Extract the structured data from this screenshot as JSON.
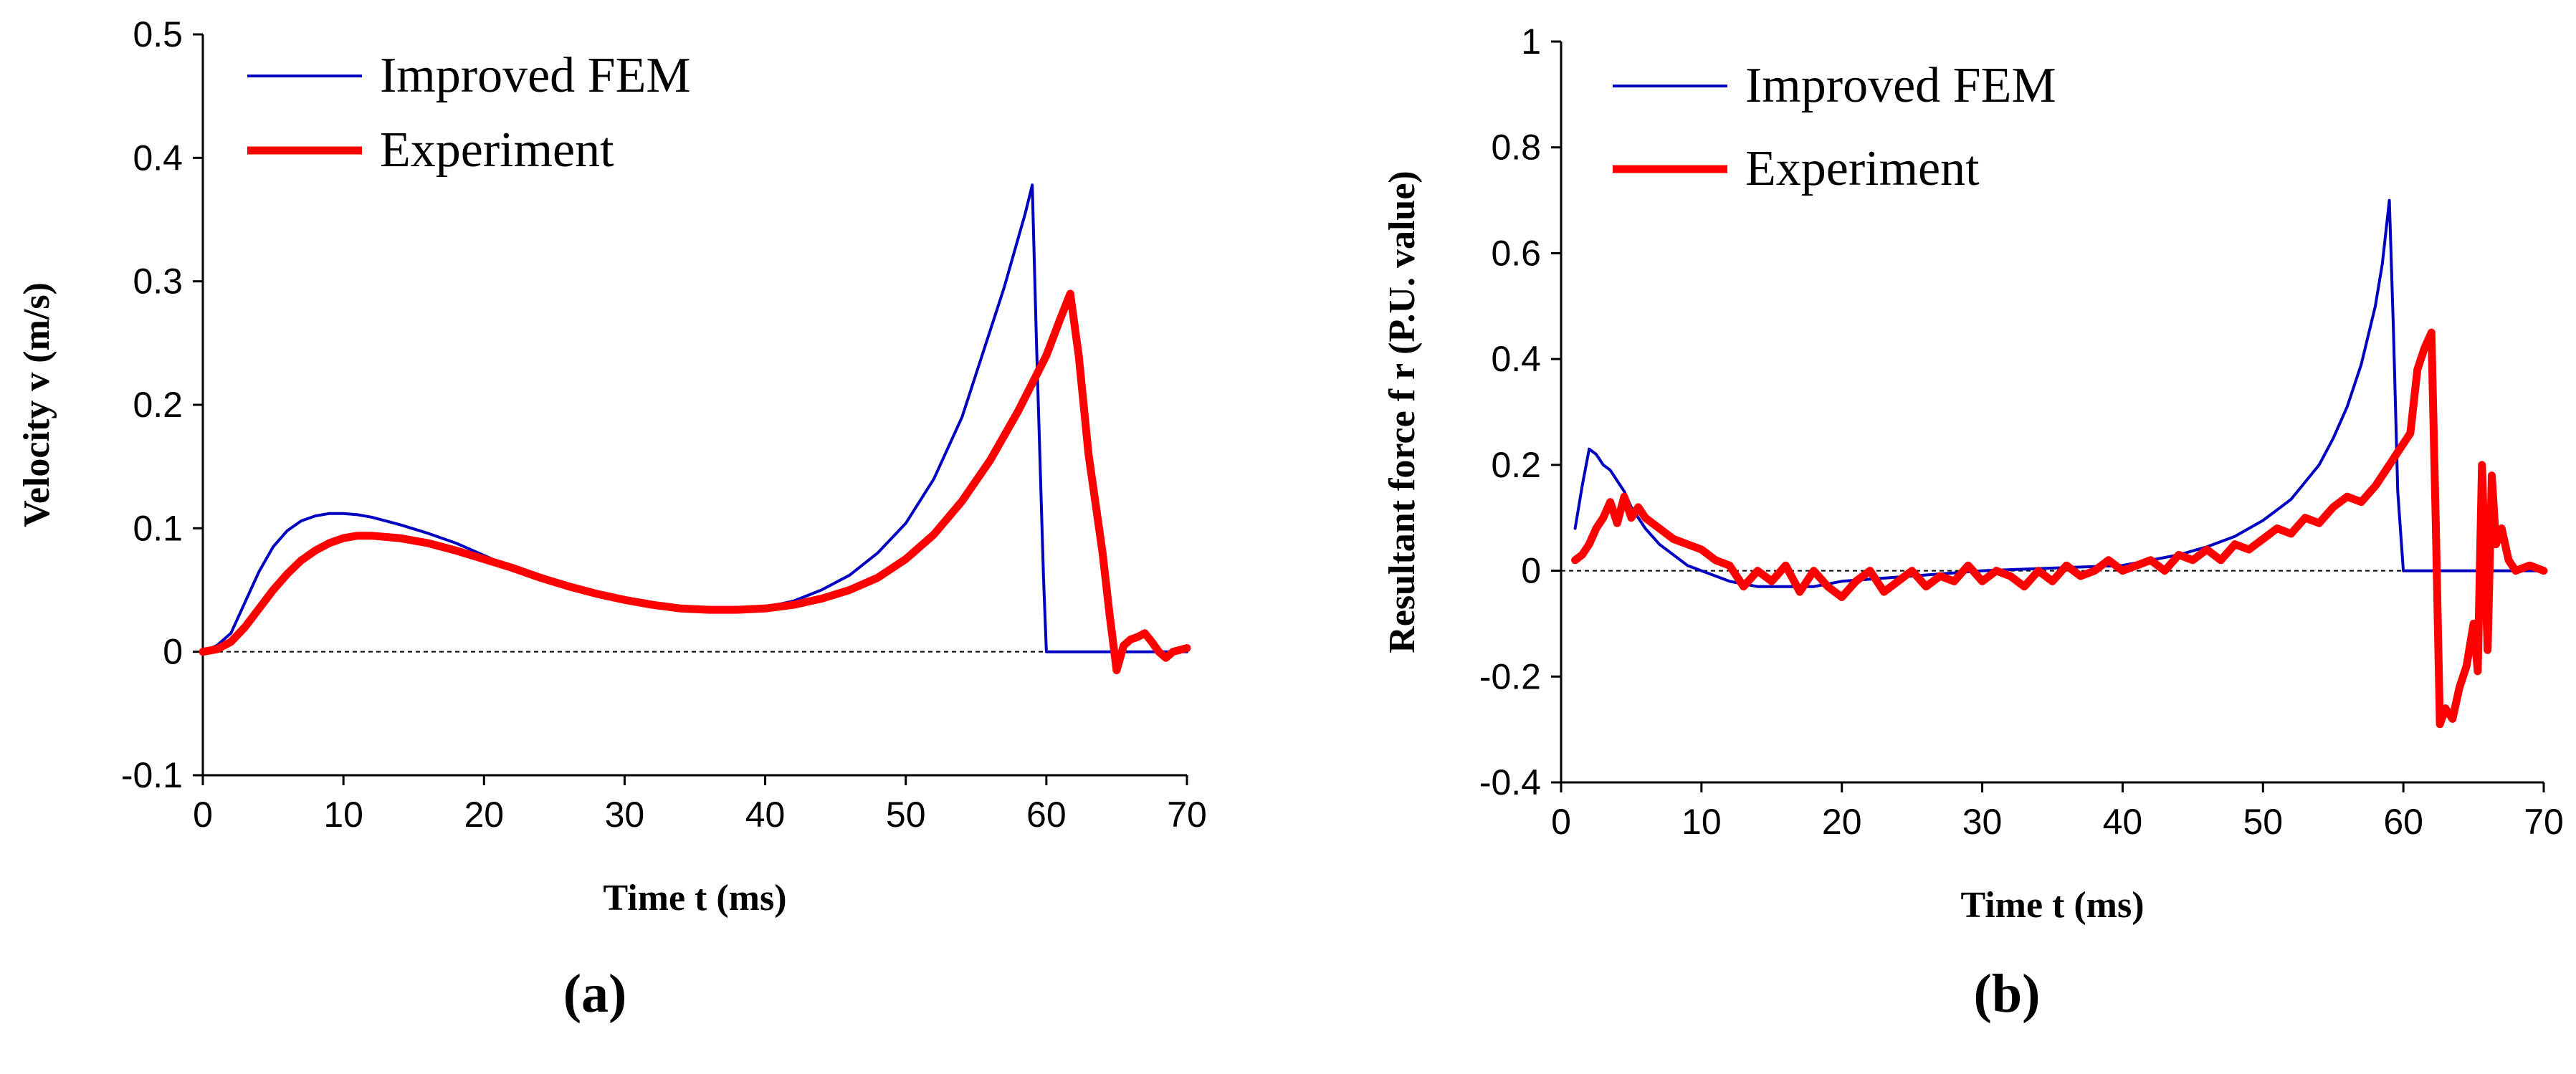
{
  "chart_data": [
    {
      "type": "line",
      "caption": "(a)",
      "xlabel": "Time t (ms)",
      "ylabel": "Velocity v (m/s)",
      "xlim": [
        0,
        70
      ],
      "ylim": [
        -0.1,
        0.5
      ],
      "xticks": [
        0,
        10,
        20,
        30,
        40,
        50,
        60,
        70
      ],
      "yticks": [
        -0.1,
        0,
        0.1,
        0.2,
        0.3,
        0.4,
        0.5
      ],
      "xtick_labels": [
        "0",
        "10",
        "20",
        "30",
        "40",
        "50",
        "60",
        "70"
      ],
      "ytick_labels": [
        "-0.1",
        "0",
        "0.1",
        "0.2",
        "0.3",
        "0.4",
        "0.5"
      ],
      "reference_line": 0,
      "legend_position": "top-left",
      "series": [
        {
          "name": "Improved FEM",
          "color": "#0000c0",
          "x": [
            0,
            1,
            2,
            3,
            4,
            5,
            6,
            7,
            8,
            9,
            10,
            11,
            12,
            14,
            16,
            18,
            20,
            22,
            24,
            26,
            28,
            30,
            32,
            34,
            36,
            38,
            40,
            42,
            44,
            46,
            48,
            50,
            52,
            54,
            55,
            56,
            57,
            58,
            58.5,
            59,
            59.3,
            59.8,
            60,
            62,
            64,
            66,
            68,
            70
          ],
          "y": [
            0,
            0.005,
            0.015,
            0.04,
            0.065,
            0.085,
            0.098,
            0.106,
            0.11,
            0.112,
            0.112,
            0.111,
            0.109,
            0.103,
            0.096,
            0.088,
            0.078,
            0.068,
            0.059,
            0.052,
            0.046,
            0.041,
            0.037,
            0.035,
            0.034,
            0.034,
            0.036,
            0.041,
            0.05,
            0.062,
            0.08,
            0.104,
            0.14,
            0.19,
            0.225,
            0.26,
            0.295,
            0.335,
            0.355,
            0.378,
            0.25,
            0.06,
            0,
            0,
            0,
            0,
            0,
            0
          ]
        },
        {
          "name": "Experiment",
          "color": "#ff0000",
          "x": [
            0,
            1,
            2,
            3,
            4,
            5,
            6,
            7,
            8,
            9,
            10,
            11,
            12,
            14,
            16,
            18,
            20,
            22,
            24,
            26,
            28,
            30,
            32,
            34,
            36,
            38,
            40,
            42,
            44,
            46,
            48,
            50,
            52,
            54,
            56,
            58,
            60,
            61,
            61.7,
            62.3,
            63,
            64,
            64.5,
            65,
            65.5,
            66,
            66.5,
            67,
            67.5,
            68,
            68.5,
            69,
            70
          ],
          "y": [
            0,
            0.002,
            0.008,
            0.02,
            0.035,
            0.05,
            0.063,
            0.074,
            0.082,
            0.088,
            0.092,
            0.094,
            0.094,
            0.092,
            0.088,
            0.082,
            0.075,
            0.068,
            0.06,
            0.053,
            0.047,
            0.042,
            0.038,
            0.035,
            0.034,
            0.034,
            0.035,
            0.038,
            0.043,
            0.05,
            0.06,
            0.075,
            0.095,
            0.122,
            0.155,
            0.195,
            0.24,
            0.27,
            0.29,
            0.24,
            0.16,
            0.08,
            0.03,
            -0.015,
            0.005,
            0.01,
            0.012,
            0.015,
            0.008,
            0.0,
            -0.005,
            0.0,
            0.003
          ]
        }
      ]
    },
    {
      "type": "line",
      "caption": "(b)",
      "xlabel": "Time t (ms)",
      "ylabel": "Resultant force f r (P.U. value)",
      "xlim": [
        0,
        70
      ],
      "ylim": [
        -0.4,
        1
      ],
      "xticks": [
        0,
        10,
        20,
        30,
        40,
        50,
        60,
        70
      ],
      "yticks": [
        -0.4,
        -0.2,
        0,
        0.2,
        0.4,
        0.6,
        0.8,
        1
      ],
      "xtick_labels": [
        "0",
        "10",
        "20",
        "30",
        "40",
        "50",
        "60",
        "70"
      ],
      "ytick_labels": [
        "-0.4",
        "-0.2",
        "0",
        "0.2",
        "0.4",
        "0.6",
        "0.8",
        "1"
      ],
      "reference_line": 0,
      "legend_position": "top-left",
      "series": [
        {
          "name": "Improved FEM",
          "color": "#0000c0",
          "x": [
            1,
            1.5,
            2,
            2.5,
            3,
            3.5,
            4,
            4.5,
            5,
            6,
            7,
            8,
            9,
            10,
            12,
            14,
            16,
            18,
            20,
            25,
            30,
            35,
            40,
            42,
            44,
            46,
            48,
            50,
            52,
            54,
            55,
            56,
            57,
            58,
            58.5,
            59,
            59.3,
            59.6,
            60,
            62,
            64,
            66,
            68,
            70
          ],
          "y": [
            0.08,
            0.16,
            0.23,
            0.22,
            0.2,
            0.19,
            0.17,
            0.15,
            0.12,
            0.08,
            0.05,
            0.03,
            0.01,
            0.0,
            -0.02,
            -0.03,
            -0.03,
            -0.03,
            -0.02,
            -0.01,
            0.0,
            0.005,
            0.01,
            0.02,
            0.03,
            0.045,
            0.065,
            0.095,
            0.135,
            0.2,
            0.25,
            0.31,
            0.39,
            0.5,
            0.58,
            0.7,
            0.45,
            0.15,
            0,
            0,
            0,
            0,
            0,
            0
          ]
        },
        {
          "name": "Experiment",
          "color": "#ff0000",
          "x": [
            1,
            1.5,
            2,
            2.5,
            3,
            3.5,
            4,
            4.5,
            5,
            5.5,
            6,
            7,
            8,
            9,
            10,
            11,
            12,
            13,
            14,
            15,
            16,
            17,
            18,
            19,
            20,
            21,
            22,
            23,
            24,
            25,
            26,
            27,
            28,
            29,
            30,
            31,
            32,
            33,
            34,
            35,
            36,
            37,
            38,
            39,
            40,
            41,
            42,
            43,
            44,
            45,
            46,
            47,
            48,
            49,
            50,
            51,
            52,
            53,
            54,
            55,
            56,
            57,
            58,
            59,
            60,
            60.5,
            61,
            61.5,
            62,
            62.3,
            62.6,
            63,
            63.5,
            64,
            64.5,
            65,
            65.3,
            65.6,
            66,
            66.3,
            66.6,
            67,
            67.5,
            68,
            69,
            70
          ],
          "y": [
            0.02,
            0.03,
            0.05,
            0.08,
            0.1,
            0.13,
            0.09,
            0.14,
            0.1,
            0.12,
            0.1,
            0.08,
            0.06,
            0.05,
            0.04,
            0.02,
            0.01,
            -0.03,
            0.0,
            -0.02,
            0.01,
            -0.04,
            0.0,
            -0.03,
            -0.05,
            -0.02,
            0.0,
            -0.04,
            -0.02,
            0.0,
            -0.03,
            -0.01,
            -0.02,
            0.01,
            -0.02,
            0.0,
            -0.01,
            -0.03,
            0.0,
            -0.02,
            0.01,
            -0.01,
            0.0,
            0.02,
            0.0,
            0.01,
            0.02,
            0.0,
            0.03,
            0.02,
            0.04,
            0.02,
            0.05,
            0.04,
            0.06,
            0.08,
            0.07,
            0.1,
            0.09,
            0.12,
            0.14,
            0.13,
            0.16,
            0.2,
            0.24,
            0.26,
            0.38,
            0.42,
            0.45,
            0.1,
            -0.29,
            -0.26,
            -0.28,
            -0.22,
            -0.18,
            -0.1,
            -0.19,
            0.2,
            -0.15,
            0.18,
            0.05,
            0.08,
            0.02,
            0.0,
            0.01,
            0.0
          ]
        }
      ]
    }
  ]
}
